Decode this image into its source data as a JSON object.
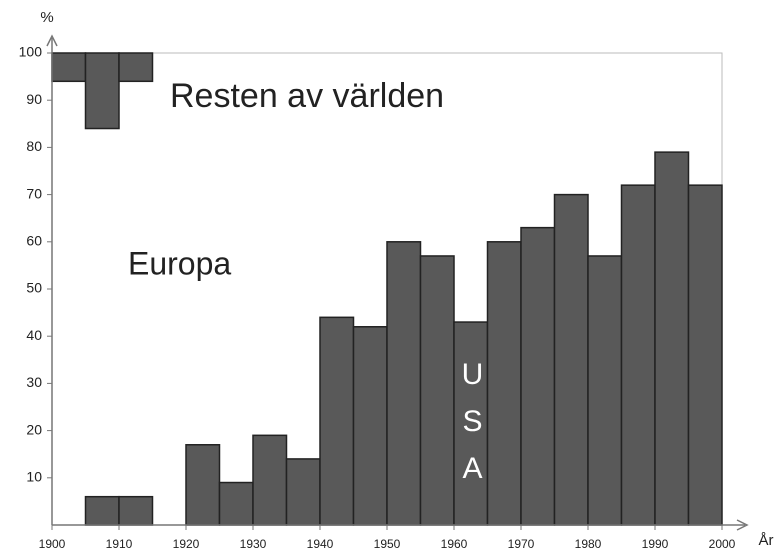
{
  "chart_data": {
    "type": "stacked_histogram",
    "y_label": "%",
    "x_label": "År",
    "bins": [
      1900,
      1905,
      1910,
      1915,
      1920,
      1925,
      1930,
      1935,
      1940,
      1945,
      1950,
      1955,
      1960,
      1965,
      1970,
      1975,
      1980,
      1985,
      1990,
      1995,
      2000
    ],
    "series": [
      {
        "name": "USA",
        "color": "#595959",
        "values": [
          0,
          6,
          6,
          0,
          17,
          9,
          19,
          14,
          44,
          42,
          60,
          57,
          43,
          60,
          63,
          70,
          57,
          72,
          79,
          72
        ]
      },
      {
        "name": "Europa",
        "color": "#ffffff",
        "values": [
          94,
          78,
          88,
          100,
          83,
          91,
          81,
          86,
          56,
          58,
          40,
          43,
          57,
          40,
          37,
          30,
          43,
          28,
          21,
          28
        ]
      },
      {
        "name": "Resten av världen",
        "color": "#595959",
        "values": [
          6,
          16,
          6,
          0,
          0,
          0,
          0,
          0,
          0,
          0,
          0,
          0,
          0,
          0,
          0,
          0,
          0,
          0,
          0,
          0
        ]
      }
    ],
    "xlim": [
      1900,
      2000
    ],
    "ylim": [
      0,
      100
    ],
    "xticks": [
      1900,
      1910,
      1920,
      1930,
      1940,
      1950,
      1960,
      1970,
      1980,
      1990,
      2000
    ],
    "yticks": [
      10,
      20,
      30,
      40,
      50,
      60,
      70,
      80,
      90,
      100
    ]
  }
}
